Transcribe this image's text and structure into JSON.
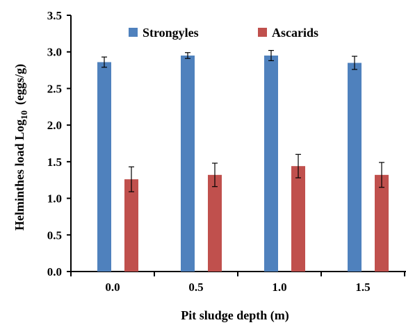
{
  "chart_data": {
    "type": "bar",
    "title": "",
    "xlabel": "Pit sludge depth (m)",
    "ylabel_main": "Helminthes load Log",
    "ylabel_sub": "10",
    "ylabel_tail": "(eggs/g)",
    "categories": [
      "0.0",
      "0.5",
      "1.0",
      "1.5"
    ],
    "ylim": [
      0,
      3.5
    ],
    "yticks": [
      "0.0",
      "0.5",
      "1.0",
      "1.5",
      "2.0",
      "2.5",
      "3.0",
      "3.5"
    ],
    "grid": false,
    "legend_position": "top",
    "series": [
      {
        "name": "Strongyles",
        "color": "#4F81BD",
        "values": [
          2.86,
          2.95,
          2.95,
          2.85
        ],
        "errors": [
          0.07,
          0.04,
          0.07,
          0.09
        ]
      },
      {
        "name": "Ascarids",
        "color": "#C0504D",
        "values": [
          1.26,
          1.32,
          1.44,
          1.32
        ],
        "errors": [
          0.17,
          0.16,
          0.16,
          0.17
        ]
      }
    ]
  }
}
